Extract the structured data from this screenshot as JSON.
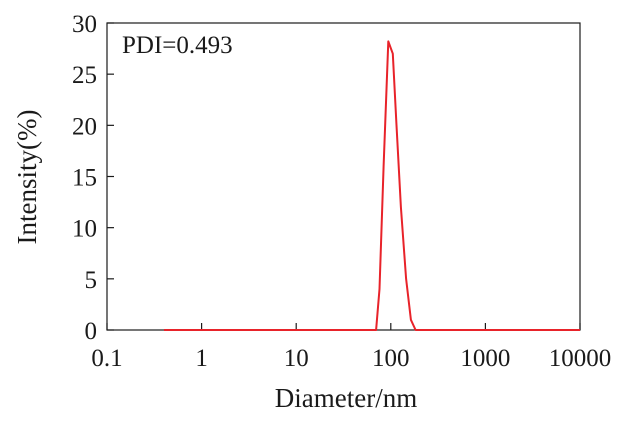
{
  "chart_data": {
    "type": "line",
    "x_scale": "log",
    "xlim": [
      0.1,
      10000
    ],
    "ylim": [
      0,
      30
    ],
    "xticks": [
      0.1,
      1,
      10,
      100,
      1000,
      10000
    ],
    "xtick_labels": [
      "0.1",
      "1",
      "10",
      "100",
      "1000",
      "10000"
    ],
    "yticks": [
      0,
      5,
      10,
      15,
      20,
      25,
      30
    ],
    "ytick_labels": [
      "0",
      "5",
      "10",
      "15",
      "20",
      "25",
      "30"
    ],
    "xlabel": "Diameter/nm",
    "ylabel": "Intensity(%)",
    "annotation": "PDI=0.493",
    "grid": false,
    "series": [
      {
        "color": "#e8232a",
        "x": [
          0.4,
          0.6,
          1,
          3,
          10,
          30,
          60,
          70,
          76,
          84,
          94,
          105,
          115,
          128,
          145,
          163,
          183,
          210,
          300,
          1000,
          5000,
          10000
        ],
        "y": [
          0,
          0,
          0,
          0,
          0,
          0,
          0,
          0,
          4,
          16,
          28.2,
          27,
          20,
          12,
          5,
          1,
          0,
          0,
          0,
          0,
          0,
          0
        ]
      }
    ]
  }
}
